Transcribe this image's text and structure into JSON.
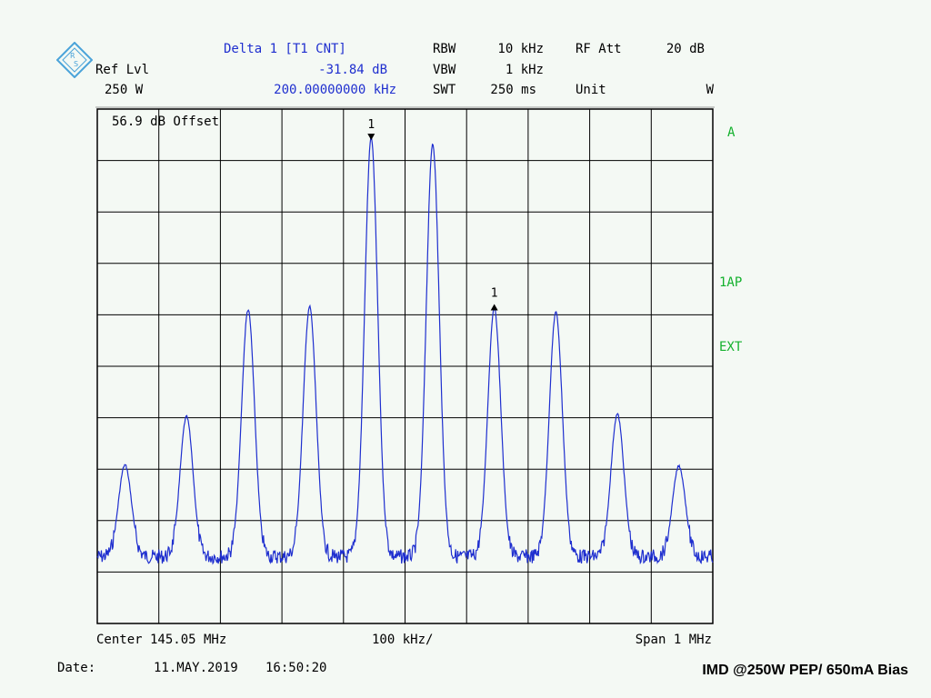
{
  "header": {
    "marker_title": "Delta 1 [T1 CNT]",
    "ref_lvl_label": "Ref Lvl",
    "ref_lvl_value": "250 W",
    "delta_level": "-31.84 dB",
    "delta_freq": "200.00000000 kHz",
    "rbw_label": "RBW",
    "rbw_value": "10 kHz",
    "vbw_label": "VBW",
    "vbw_value": "1 kHz",
    "swt_label": "SWT",
    "swt_value": "250 ms",
    "rf_att_label": "RF Att",
    "rf_att_value": "20 dB",
    "unit_label": "Unit",
    "unit_value": "W"
  },
  "side_labels": {
    "trace": "A",
    "detector": "1AP",
    "ext": "EXT"
  },
  "offset_label": "56.9 dB Offset",
  "footer": {
    "center": "Center 145.05 MHz",
    "div": "100 kHz/",
    "span": "Span 1 MHz",
    "date_label": "Date:",
    "date_value": "11.MAY.2019",
    "time_value": "16:50:20",
    "caption": "IMD @250W PEP/ 650mA Bias"
  },
  "colors": {
    "trace": "#1f2fcf",
    "grid": "#000000",
    "background": "#f4f9f4",
    "label_green": "#13b12d"
  },
  "chart_data": {
    "type": "line",
    "title": "",
    "xlabel": "",
    "ylabel": "",
    "x_unit": "MHz",
    "xlim": [
      144.55,
      145.55
    ],
    "grid_divisions": {
      "x": 10,
      "y": 10
    },
    "ylim_divisions": [
      0,
      10
    ],
    "y_scale": "divisions below reference level",
    "noise_floor_div": 8.7,
    "peaks": [
      {
        "f": 144.595,
        "div": 6.92
      },
      {
        "f": 144.695,
        "div": 5.98
      },
      {
        "f": 144.795,
        "div": 3.9
      },
      {
        "f": 144.895,
        "div": 3.84
      },
      {
        "f": 144.995,
        "div": 0.55
      },
      {
        "f": 145.095,
        "div": 0.67
      },
      {
        "f": 145.195,
        "div": 3.86
      },
      {
        "f": 145.295,
        "div": 3.95
      },
      {
        "f": 145.395,
        "div": 5.93
      },
      {
        "f": 145.495,
        "div": 6.94
      }
    ],
    "markers": [
      {
        "label": "1",
        "f": 144.995,
        "div": 0.55,
        "symbol": "down-triangle"
      },
      {
        "label": "1",
        "f": 145.195,
        "div": 3.86,
        "symbol": "up-triangle"
      }
    ]
  }
}
